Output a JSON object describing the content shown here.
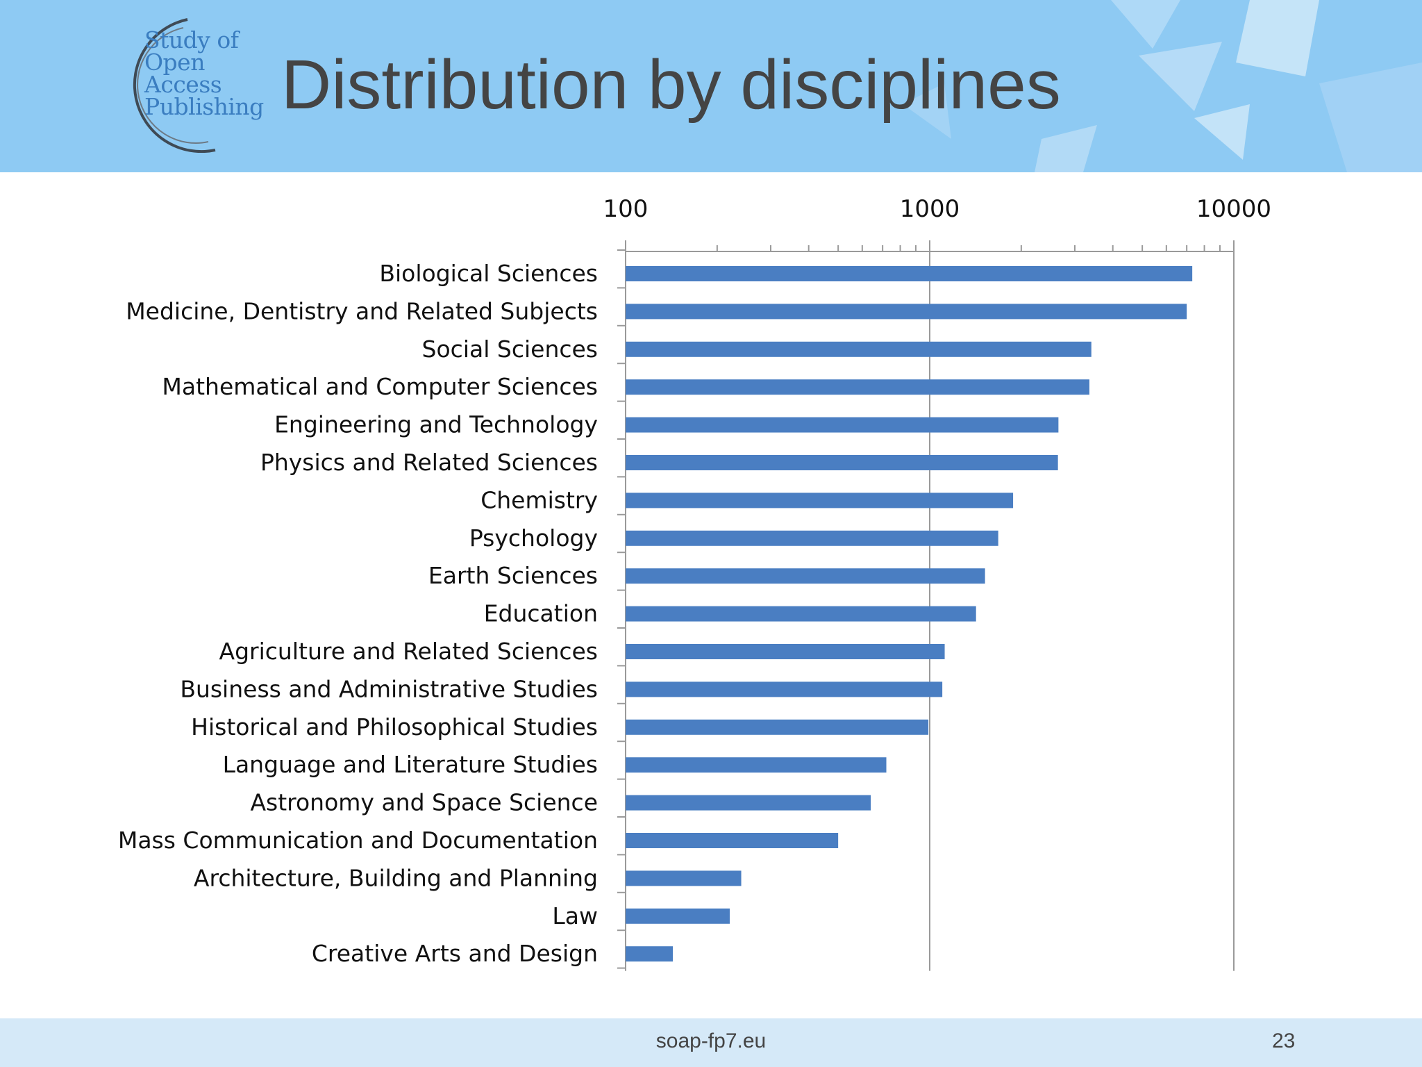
{
  "header": {
    "title": "Distribution by disciplines",
    "logo_lines": [
      "Study of",
      "Open",
      "Access",
      "Publishing"
    ]
  },
  "colors": {
    "header_bg": "#8ecaf3",
    "bar": "#4a7ec2",
    "title": "#444444",
    "logo": "#3a7dc0",
    "footer_bg": "#d5e9f8"
  },
  "footer": {
    "site": "soap-fp7.eu",
    "page": "23"
  },
  "chart_data": {
    "type": "bar",
    "orientation": "horizontal",
    "x_scale": "log",
    "xlim": [
      100,
      10000
    ],
    "x_ticks": [
      100,
      1000,
      10000
    ],
    "x_tick_labels": [
      "100",
      "1000",
      "10000"
    ],
    "x_axis_position": "top",
    "grid": "major vertical only",
    "title": "",
    "xlabel": "",
    "ylabel": "",
    "categories": [
      "Biological Sciences",
      "Medicine, Dentistry and Related Subjects",
      "Social Sciences",
      "Mathematical and Computer Sciences",
      "Engineering and Technology",
      "Physics and Related Sciences",
      "Chemistry",
      "Psychology",
      "Earth Sciences",
      "Education",
      "Agriculture and Related Sciences",
      "Business and Administrative Studies",
      "Historical and Philosophical Studies",
      "Language and Literature Studies",
      "Astronomy and Space Science",
      "Mass Communication and Documentation",
      "Architecture, Building and Planning",
      "Law",
      "Creative Arts and Design"
    ],
    "values": [
      7300,
      7000,
      3400,
      3350,
      2650,
      2640,
      1880,
      1680,
      1520,
      1420,
      1120,
      1100,
      990,
      720,
      640,
      500,
      240,
      220,
      143
    ]
  }
}
